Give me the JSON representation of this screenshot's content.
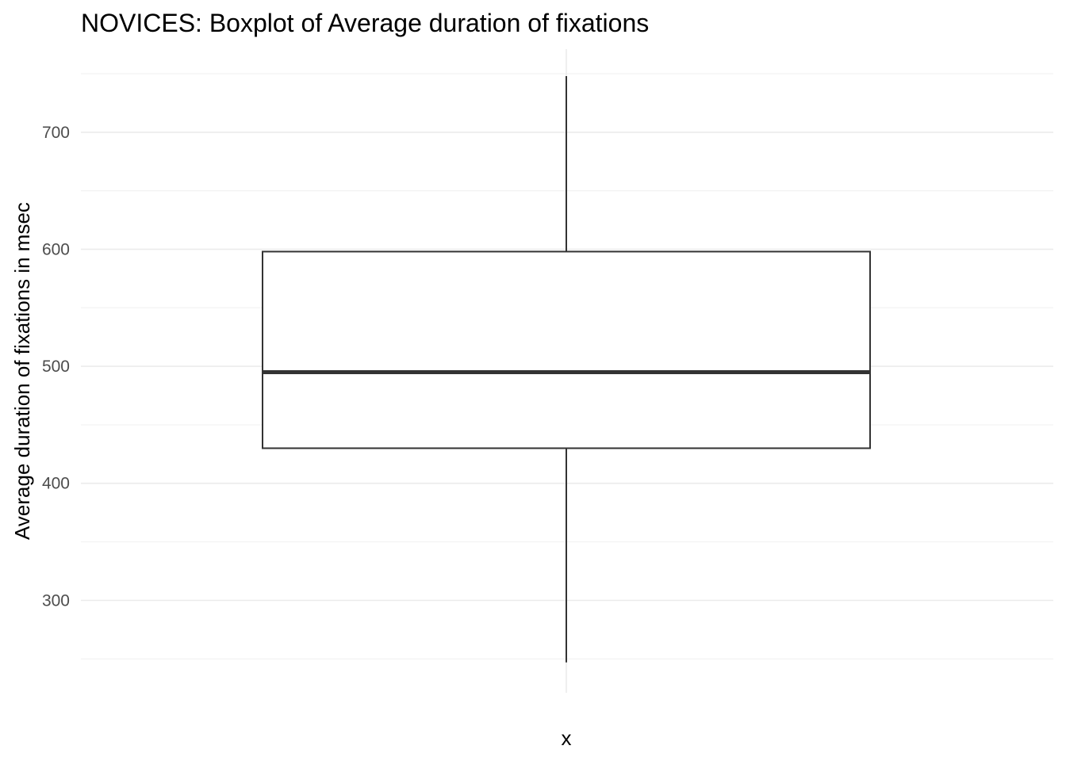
{
  "chart_data": {
    "type": "boxplot",
    "title": "NOVICES: Boxplot of Average duration of fixations",
    "xlabel": "x",
    "ylabel": "Average duration of fixations in msec",
    "ylim": [
      221,
      771
    ],
    "yticks": [
      300,
      400,
      500,
      600,
      700
    ],
    "yminor": [
      250,
      350,
      450,
      550,
      650,
      750
    ],
    "grid": true,
    "box": {
      "min": 247,
      "q1": 430,
      "median": 495,
      "q3": 598,
      "max": 748
    },
    "colors": {
      "box_stroke": "#333333",
      "box_fill": "#ffffff",
      "grid_major": "#ebebeb",
      "grid_minor": "#f2f2f2"
    }
  }
}
